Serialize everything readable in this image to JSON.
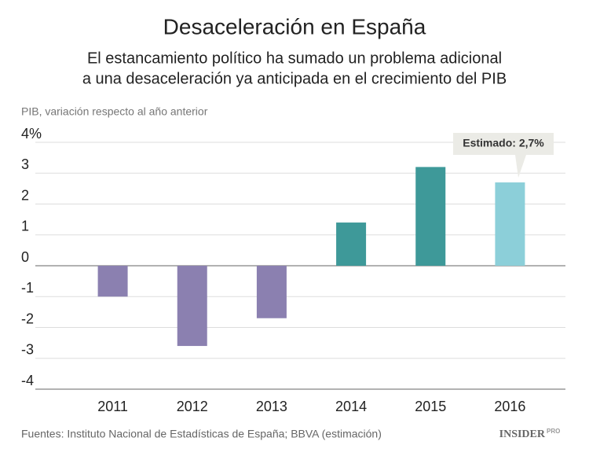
{
  "chart_data": {
    "type": "bar",
    "title": "Desaceleración en España",
    "subtitle": [
      "El estancamiento político ha sumado un problema adicional",
      "a una desaceleración ya anticipada en el crecimiento del PIB"
    ],
    "y_axis_label": "PIB, variación respecto al año anterior",
    "categories": [
      "2011",
      "2012",
      "2013",
      "2014",
      "2015",
      "2016"
    ],
    "values": [
      -1.0,
      -2.6,
      -1.7,
      1.4,
      3.2,
      2.7
    ],
    "colors": [
      "#8b80b0",
      "#8b80b0",
      "#8b80b0",
      "#3e9999",
      "#3e9999",
      "#8ccfd9"
    ],
    "ylim": [
      -4,
      4
    ],
    "yticks": [
      -4,
      -3,
      -2,
      -1,
      0,
      1,
      2,
      3,
      {
        "value": 4,
        "label": "4%"
      }
    ],
    "grid": true,
    "annotation": "Estimado: 2,7%",
    "source": "Fuentes: Instituto Nacional de Estadísticas de España; BBVA (estimación)",
    "logo": [
      "INSIDER",
      "PRO"
    ]
  }
}
